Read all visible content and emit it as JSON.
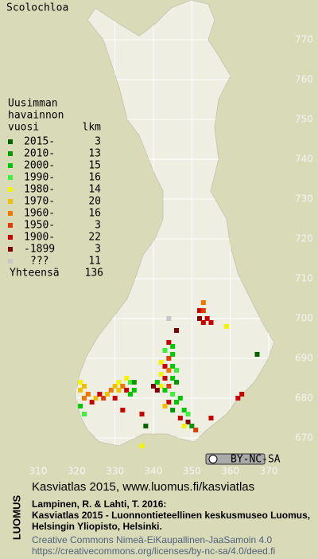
{
  "title": "Scolochloa",
  "legend": {
    "header": [
      "Uusimman",
      "havainnon",
      "vuosi"
    ],
    "count_header": "lkm",
    "rows": [
      {
        "label": "2015-",
        "count": 3,
        "color": "#006400"
      },
      {
        "label": "2010-",
        "count": 13,
        "color": "#009a00"
      },
      {
        "label": "2000-",
        "count": 15,
        "color": "#00c800"
      },
      {
        "label": "1990-",
        "count": 16,
        "color": "#3cf03c"
      },
      {
        "label": "1980-",
        "count": 14,
        "color": "#f4f400"
      },
      {
        "label": "1970-",
        "count": 20,
        "color": "#f0c000"
      },
      {
        "label": "1960-",
        "count": 16,
        "color": "#f07800"
      },
      {
        "label": "1950-",
        "count": 3,
        "color": "#e03c00"
      },
      {
        "label": "1900-",
        "count": 22,
        "color": "#c80000"
      },
      {
        "label": "-1899",
        "count": 3,
        "color": "#800000"
      },
      {
        "label": "???",
        "count": 11,
        "color": "#c8c8c8"
      }
    ],
    "total_label": "Yhteensä",
    "total": 136
  },
  "map": {
    "xlim": [
      310,
      370
    ],
    "ylim": [
      670,
      770
    ],
    "xticks": [
      310,
      320,
      330,
      340,
      350,
      360,
      370
    ],
    "yticks": [
      670,
      680,
      690,
      700,
      710,
      720,
      730,
      740,
      750,
      760,
      770
    ],
    "points": [
      [
        353,
        704,
        6
      ],
      [
        352,
        702,
        8
      ],
      [
        353,
        702,
        7
      ],
      [
        354,
        700,
        8
      ],
      [
        352,
        700,
        9
      ],
      [
        355,
        699,
        8
      ],
      [
        353,
        699,
        8
      ],
      [
        344,
        700,
        10
      ],
      [
        359,
        698,
        4
      ],
      [
        367,
        691,
        0
      ],
      [
        346,
        697,
        9
      ],
      [
        344,
        694,
        8
      ],
      [
        345,
        693,
        2
      ],
      [
        343,
        692,
        3
      ],
      [
        345,
        691,
        2
      ],
      [
        344,
        690,
        7
      ],
      [
        342,
        689,
        4
      ],
      [
        343,
        688,
        8
      ],
      [
        345,
        688,
        2
      ],
      [
        344,
        687,
        6
      ],
      [
        346,
        687,
        3
      ],
      [
        342,
        686,
        4
      ],
      [
        343,
        685,
        8
      ],
      [
        345,
        685,
        2
      ],
      [
        346,
        684,
        1
      ],
      [
        344,
        683,
        7
      ],
      [
        342,
        683,
        4
      ],
      [
        341,
        682,
        9
      ],
      [
        343,
        682,
        2
      ],
      [
        345,
        681,
        3
      ],
      [
        347,
        680,
        2
      ],
      [
        344,
        679,
        8
      ],
      [
        346,
        679,
        2
      ],
      [
        343,
        678,
        5
      ],
      [
        345,
        677,
        1
      ],
      [
        348,
        677,
        2
      ],
      [
        349,
        676,
        3
      ],
      [
        347,
        675,
        8
      ],
      [
        349,
        674,
        9
      ],
      [
        350,
        673,
        1
      ],
      [
        348,
        673,
        4
      ],
      [
        351,
        672,
        7
      ],
      [
        355,
        675,
        8
      ],
      [
        362,
        680,
        8
      ],
      [
        363,
        681,
        8
      ],
      [
        340,
        683,
        9
      ],
      [
        341,
        684,
        2
      ],
      [
        321,
        684,
        4
      ],
      [
        322,
        683,
        5
      ],
      [
        321,
        682,
        5
      ],
      [
        323,
        681,
        6
      ],
      [
        322,
        680,
        6
      ],
      [
        324,
        679,
        8
      ],
      [
        325,
        680,
        5
      ],
      [
        326,
        681,
        8
      ],
      [
        327,
        680,
        7
      ],
      [
        328,
        681,
        5
      ],
      [
        329,
        682,
        6
      ],
      [
        330,
        683,
        5
      ],
      [
        331,
        684,
        4
      ],
      [
        332,
        683,
        6
      ],
      [
        331,
        682,
        5
      ],
      [
        333,
        682,
        8
      ],
      [
        334,
        684,
        3
      ],
      [
        333,
        685,
        4
      ],
      [
        335,
        684,
        1
      ],
      [
        335,
        682,
        2
      ],
      [
        334,
        681,
        2
      ],
      [
        330,
        680,
        8
      ],
      [
        321,
        678,
        2
      ],
      [
        322,
        676,
        3
      ],
      [
        337,
        676,
        8
      ],
      [
        332,
        677,
        8
      ],
      [
        338,
        673,
        0
      ],
      [
        337,
        668,
        4
      ]
    ]
  },
  "badge": "BY-NC-SA",
  "footer": {
    "logo": "LUOMUS",
    "headline": "Kasviatlas 2015, www.luomus.fi/kasviatlas",
    "citation": [
      "Lampinen, R. & Lahti, T. 2016:",
      "Kasviatlas 2015 - Luonnontieteellinen keskusmuseo Luomus,",
      "Helsingin Yliopisto, Helsinki."
    ],
    "license": [
      "Creative Commons Nimeä-EiKaupallinen-JaaSamoin 4.0",
      "https://creativecommons.org/licenses/by-nc-sa/4.0/deed.fi"
    ]
  }
}
